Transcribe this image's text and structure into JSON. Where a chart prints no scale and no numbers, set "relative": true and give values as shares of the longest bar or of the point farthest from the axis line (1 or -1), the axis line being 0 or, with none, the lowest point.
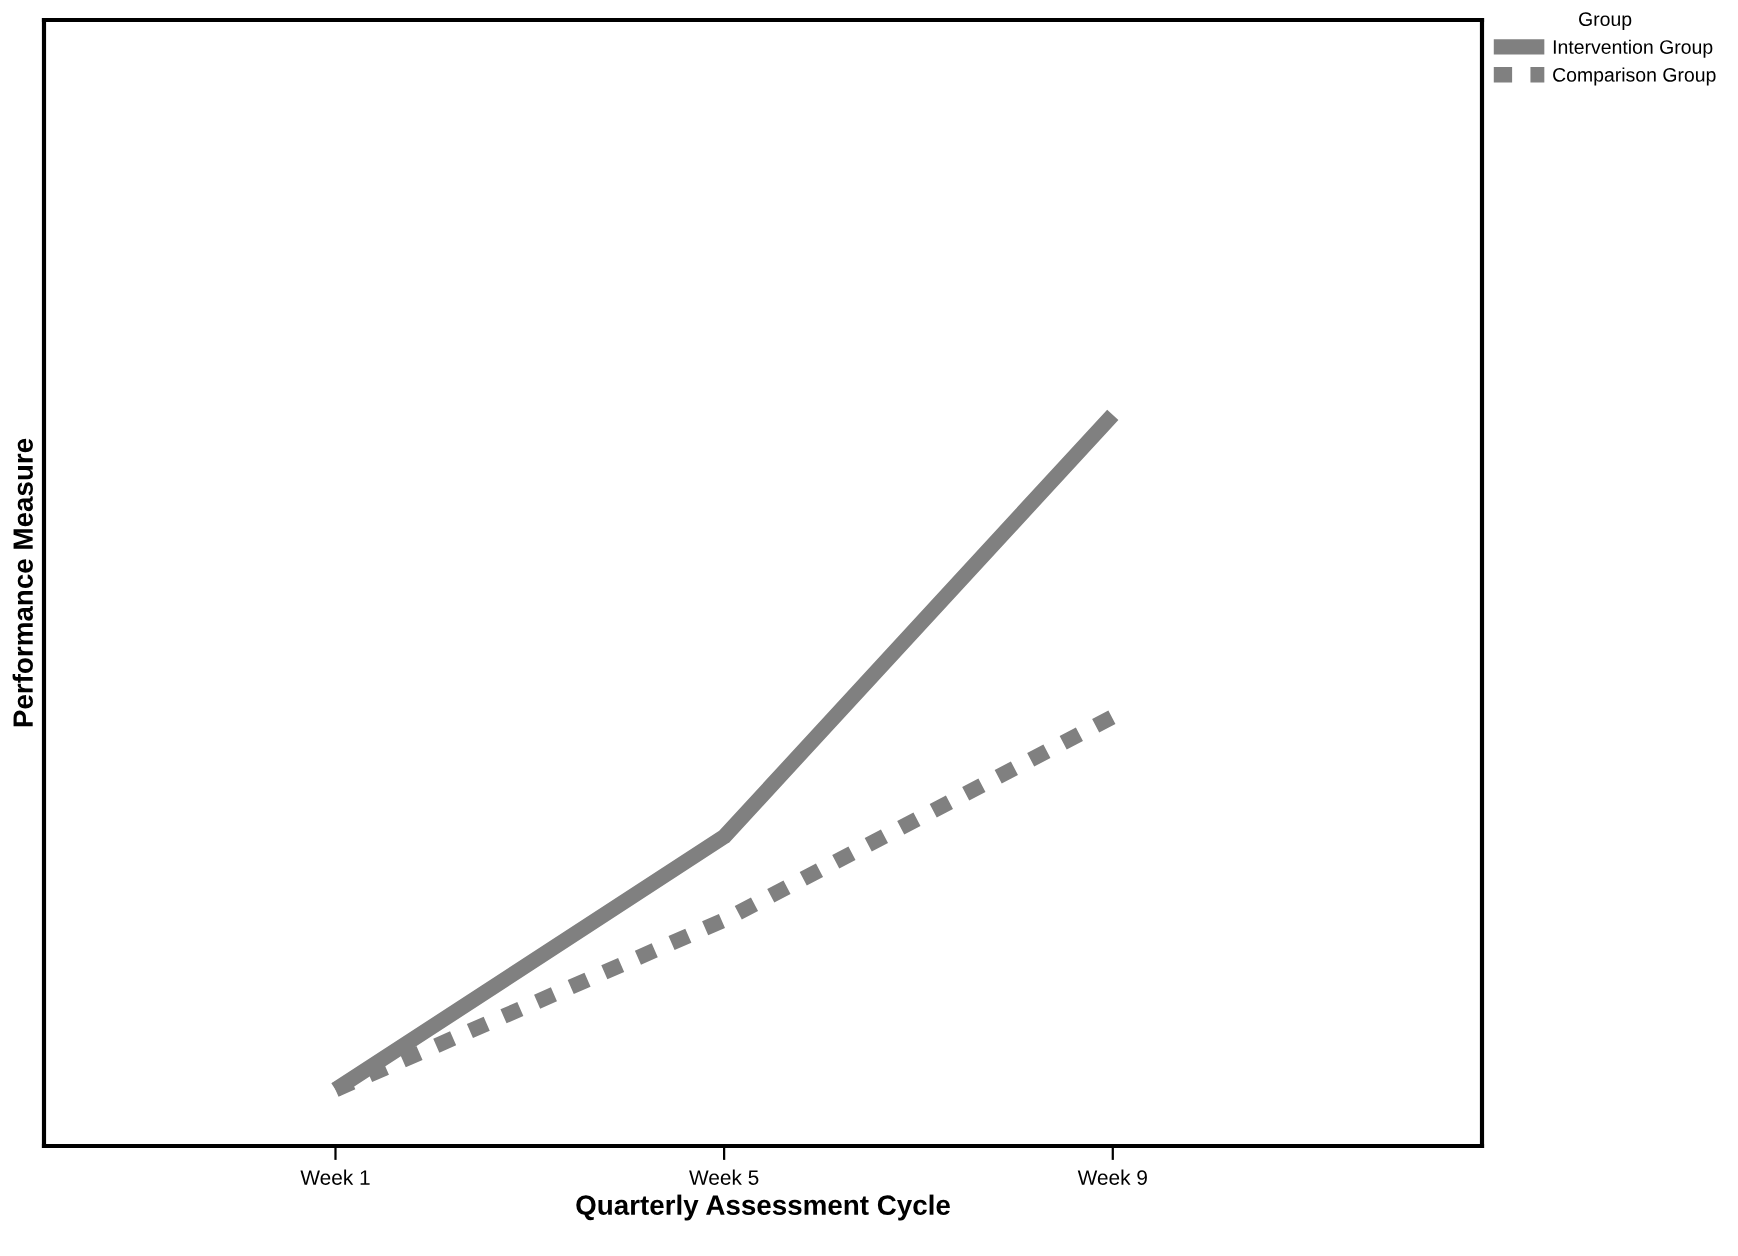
{
  "chart_data": {
    "type": "line",
    "relative": true,
    "xlabel": "Quarterly Assessment Cycle",
    "ylabel": "Performance Measure",
    "legend_title": "Group",
    "legend": "right",
    "tick_labels": "x",
    "grid": false,
    "marker": "none",
    "categories": [
      "Week 1",
      "Week 5",
      "Week 9"
    ],
    "series": [
      {
        "name": "Intervention Group",
        "color": "#808080",
        "line_style": "solid",
        "values": [
          0.077,
          0.423,
          1.0
        ]
      },
      {
        "name": "Comparison Group",
        "color": "#808080",
        "line_style": "dashed",
        "values": [
          0.077,
          0.309,
          0.587
        ]
      }
    ]
  }
}
